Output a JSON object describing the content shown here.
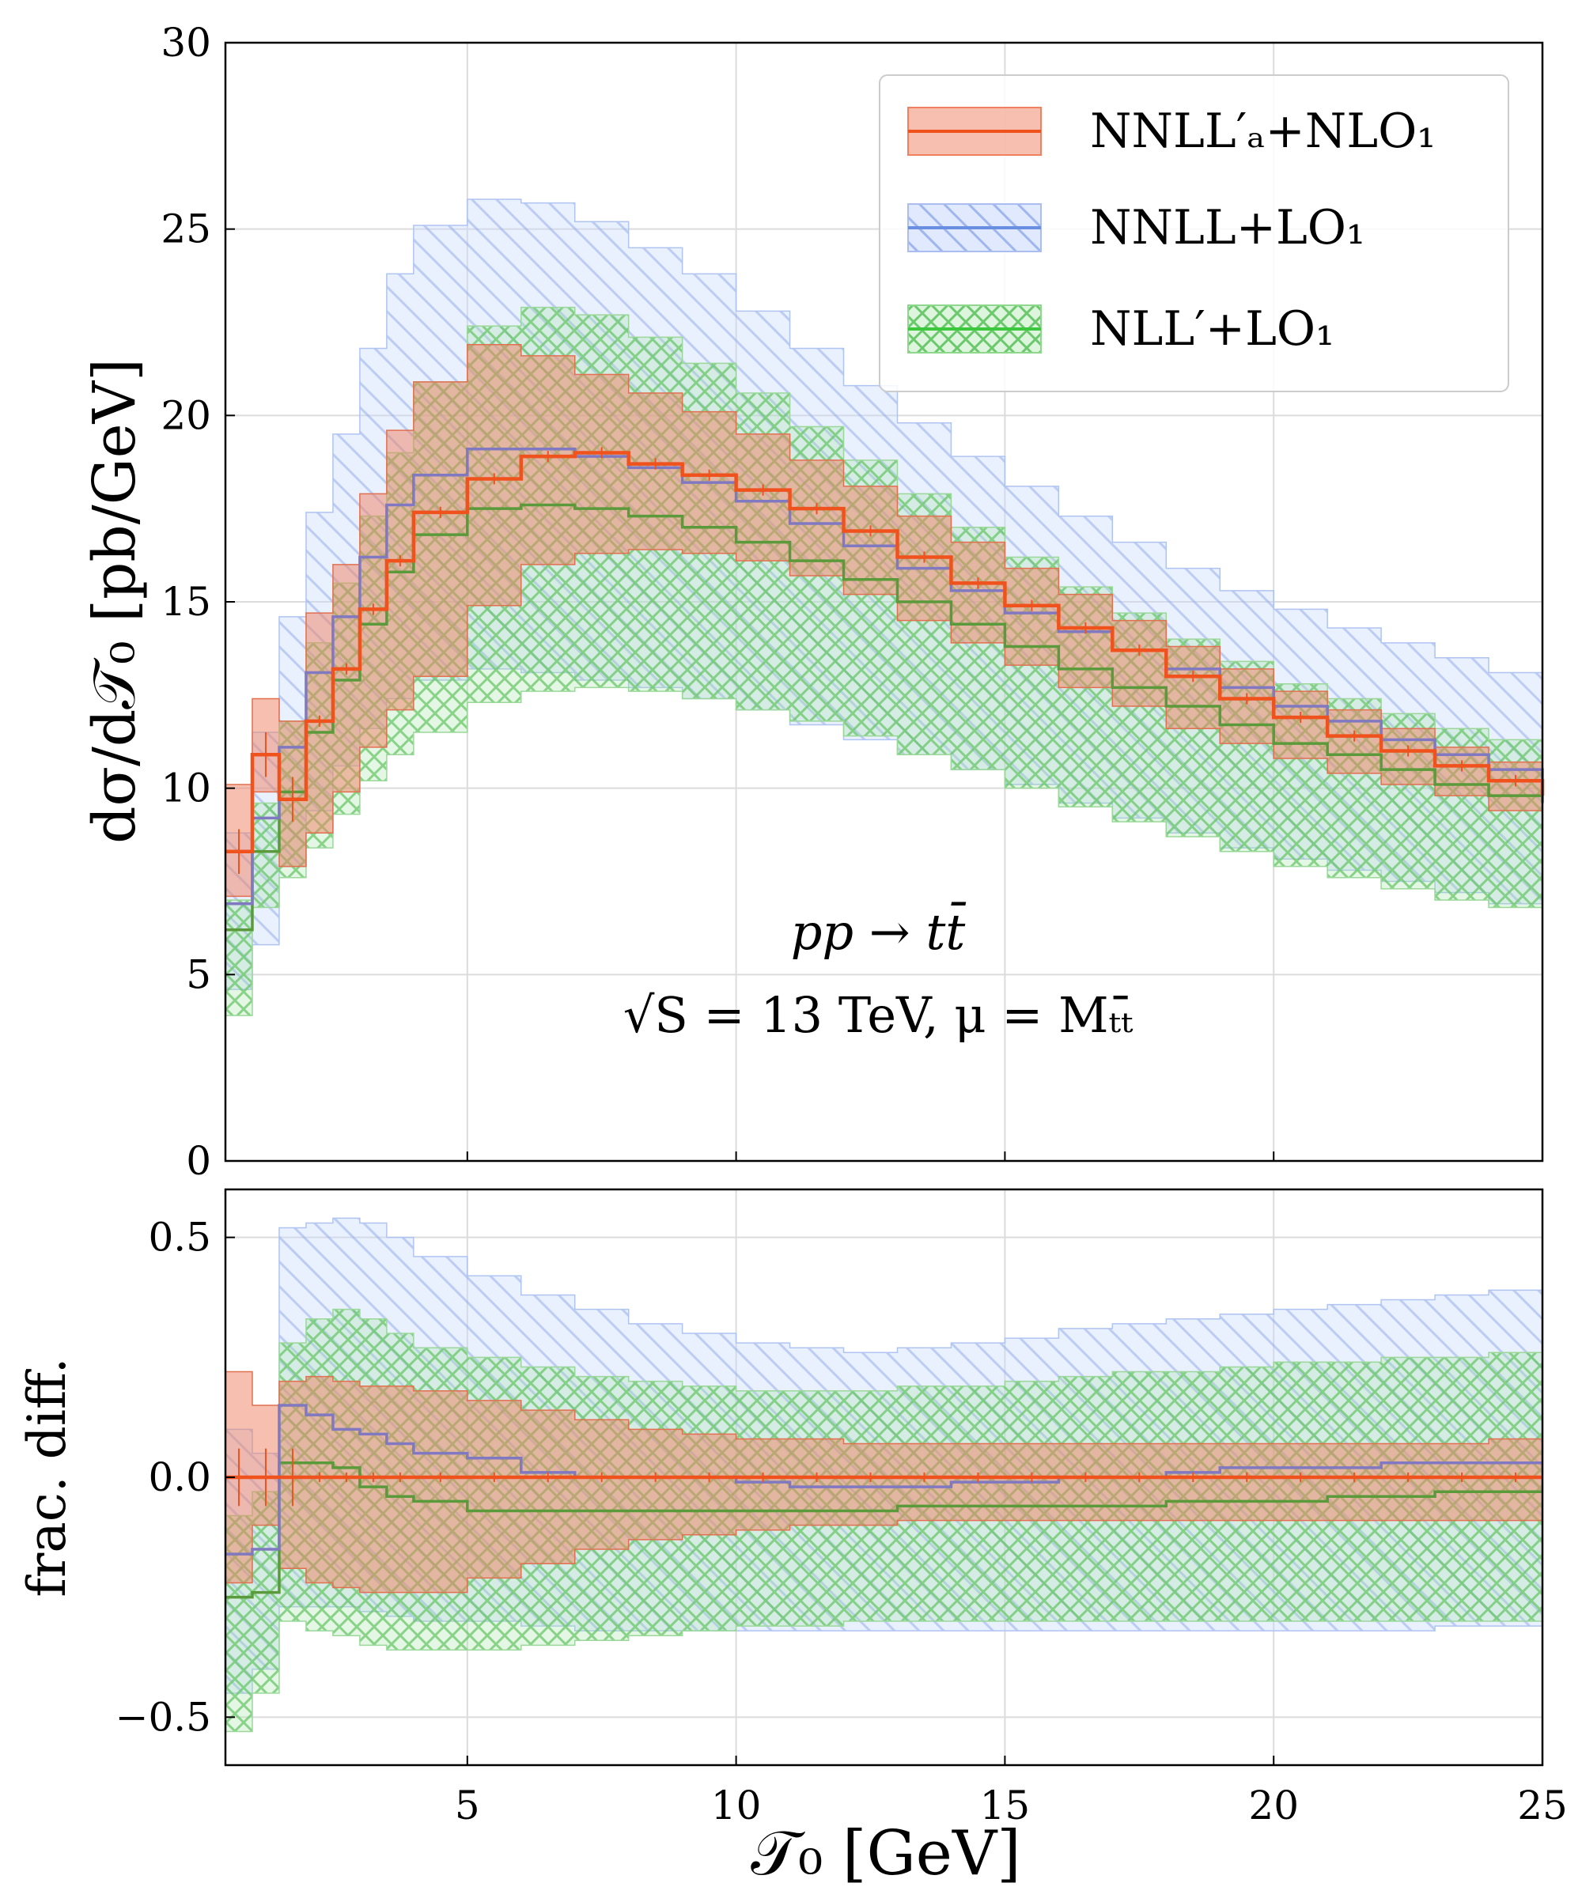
{
  "chart_data": [
    {
      "panel": "main",
      "type": "line",
      "ylabel": "dσ/d𝒯₀  [pb/GeV]",
      "ylim": [
        0,
        30
      ],
      "xlim": [
        0.5,
        25
      ],
      "yticks": [
        0,
        5,
        10,
        15,
        20,
        25,
        30
      ],
      "ytick_labels": [
        "0",
        "5",
        "10",
        "15",
        "20",
        "25",
        "30"
      ],
      "grid": true,
      "legend_position": "top-right",
      "annotation": {
        "line1": "pp → tt̄",
        "line2": "√S = 13 TeV, μ = Mₜₜ̄"
      },
      "x": [
        0.5,
        1.0,
        1.5,
        2.0,
        2.5,
        3.0,
        3.5,
        4.0,
        5.0,
        6.0,
        7.0,
        8.0,
        9.0,
        10.0,
        11.0,
        12.0,
        13.0,
        14.0,
        15.0,
        16.0,
        17.0,
        18.0,
        19.0,
        20.0,
        21.0,
        22.0,
        23.0,
        24.0,
        25.0
      ],
      "series": [
        {
          "name": "NNLL′ₐ+NLO₁",
          "color": "#f0521e",
          "band_color": "#f08060",
          "style": "solid",
          "values": [
            8.3,
            10.9,
            9.7,
            11.8,
            13.2,
            14.8,
            16.1,
            17.4,
            18.3,
            18.9,
            19.0,
            18.7,
            18.4,
            18.0,
            17.5,
            16.9,
            16.2,
            15.5,
            14.9,
            14.3,
            13.7,
            13.0,
            12.4,
            11.9,
            11.4,
            11.0,
            10.6,
            10.2,
            9.8
          ],
          "lower": [
            7.1,
            9.9,
            7.9,
            8.8,
            9.9,
            11.1,
            12.1,
            13.0,
            14.9,
            16.0,
            16.3,
            16.4,
            16.3,
            16.1,
            15.7,
            15.2,
            14.5,
            13.9,
            13.3,
            12.7,
            12.2,
            11.6,
            11.2,
            10.8,
            10.4,
            10.1,
            9.8,
            9.4,
            8.9
          ],
          "upper": [
            10.1,
            12.4,
            11.8,
            14.7,
            16.0,
            17.9,
            19.6,
            20.9,
            21.9,
            21.6,
            21.1,
            20.6,
            20.1,
            19.5,
            18.8,
            18.1,
            17.3,
            16.6,
            15.9,
            15.2,
            14.5,
            13.8,
            13.2,
            12.6,
            12.1,
            11.6,
            11.1,
            10.7,
            10.6
          ]
        },
        {
          "name": "NNLL+LO₁",
          "color": "#8078c0",
          "band_color": "#a9bdf0",
          "style": "hatched",
          "values": [
            6.9,
            9.2,
            11.1,
            13.1,
            14.6,
            16.2,
            17.6,
            18.4,
            19.1,
            19.1,
            18.9,
            18.6,
            18.2,
            17.7,
            17.1,
            16.5,
            15.9,
            15.3,
            14.7,
            14.2,
            13.7,
            13.2,
            12.7,
            12.2,
            11.8,
            11.3,
            10.9,
            10.5,
            10.2
          ],
          "lower": [
            4.6,
            5.8,
            7.9,
            9.4,
            10.6,
            11.6,
            12.4,
            12.9,
            13.2,
            13.1,
            12.9,
            12.7,
            12.4,
            12.1,
            11.7,
            11.3,
            10.9,
            10.5,
            10.1,
            9.6,
            9.2,
            8.8,
            8.4,
            8.1,
            7.8,
            7.5,
            7.2,
            6.9,
            6.8
          ],
          "upper": [
            8.8,
            11.5,
            14.6,
            17.4,
            19.5,
            21.8,
            23.8,
            25.1,
            25.8,
            25.7,
            25.2,
            24.5,
            23.8,
            22.8,
            21.8,
            20.8,
            19.8,
            18.9,
            18.1,
            17.3,
            16.6,
            15.9,
            15.3,
            14.8,
            14.3,
            13.9,
            13.5,
            13.1,
            12.3
          ]
        },
        {
          "name": "NLL′+LO₁",
          "color": "#5a9a3a",
          "band_color": "#8ed88e",
          "style": "crosshatched",
          "values": [
            6.2,
            8.3,
            9.9,
            11.5,
            12.9,
            14.4,
            15.8,
            16.8,
            17.5,
            17.6,
            17.5,
            17.3,
            17.0,
            16.6,
            16.1,
            15.6,
            15.0,
            14.4,
            13.8,
            13.2,
            12.7,
            12.2,
            11.7,
            11.2,
            10.9,
            10.5,
            10.1,
            9.8,
            9.6
          ],
          "lower": [
            3.9,
            6.8,
            7.6,
            8.4,
            9.3,
            10.2,
            10.9,
            11.5,
            12.3,
            12.6,
            12.7,
            12.6,
            12.4,
            12.1,
            11.8,
            11.4,
            10.9,
            10.5,
            10.0,
            9.5,
            9.1,
            8.7,
            8.3,
            7.9,
            7.6,
            7.3,
            7.0,
            6.8,
            6.8
          ],
          "upper": [
            7.0,
            9.6,
            11.8,
            13.9,
            15.5,
            17.3,
            19.0,
            20.9,
            22.4,
            22.9,
            22.7,
            22.1,
            21.4,
            20.6,
            19.7,
            18.8,
            17.9,
            17.0,
            16.2,
            15.4,
            14.7,
            14.0,
            13.4,
            12.8,
            12.4,
            12.0,
            11.6,
            11.3,
            10.6
          ]
        }
      ]
    },
    {
      "panel": "ratio",
      "type": "line",
      "xlabel": "𝒯₀  [GeV]",
      "ylabel": "frac. diff.",
      "ylim": [
        -0.6,
        0.6
      ],
      "xlim": [
        0.5,
        25
      ],
      "yticks": [
        -0.5,
        0.0,
        0.5
      ],
      "ytick_labels": [
        "−0.5",
        "0.0",
        "0.5"
      ],
      "xticks": [
        5,
        10,
        15,
        20,
        25
      ],
      "xtick_labels": [
        "5",
        "10",
        "15",
        "20",
        "25"
      ],
      "grid": true,
      "x": [
        0.5,
        1.0,
        1.5,
        2.0,
        2.5,
        3.0,
        3.5,
        4.0,
        5.0,
        6.0,
        7.0,
        8.0,
        9.0,
        10.0,
        11.0,
        12.0,
        13.0,
        14.0,
        15.0,
        16.0,
        17.0,
        18.0,
        19.0,
        20.0,
        21.0,
        22.0,
        23.0,
        24.0,
        25.0
      ],
      "series": [
        {
          "name": "NNLL′ₐ+NLO₁",
          "color": "#f0521e",
          "band_color": "#f08060",
          "style": "solid",
          "values": [
            0.0,
            0.0,
            0.0,
            0.0,
            0.0,
            0.0,
            0.0,
            0.0,
            0.0,
            0.0,
            0.0,
            0.0,
            0.0,
            0.0,
            0.0,
            0.0,
            0.0,
            0.0,
            0.0,
            0.0,
            0.0,
            0.0,
            0.0,
            0.0,
            0.0,
            0.0,
            0.0,
            0.0,
            0.0
          ],
          "lower": [
            -0.22,
            -0.1,
            -0.19,
            -0.22,
            -0.23,
            -0.24,
            -0.24,
            -0.24,
            -0.21,
            -0.18,
            -0.15,
            -0.13,
            -0.12,
            -0.11,
            -0.1,
            -0.1,
            -0.09,
            -0.09,
            -0.09,
            -0.09,
            -0.09,
            -0.09,
            -0.09,
            -0.09,
            -0.09,
            -0.09,
            -0.09,
            -0.09,
            -0.1
          ],
          "upper": [
            0.22,
            0.15,
            0.2,
            0.21,
            0.2,
            0.19,
            0.19,
            0.18,
            0.16,
            0.14,
            0.12,
            0.1,
            0.09,
            0.08,
            0.08,
            0.07,
            0.07,
            0.07,
            0.07,
            0.07,
            0.07,
            0.07,
            0.07,
            0.07,
            0.07,
            0.07,
            0.07,
            0.08,
            0.08
          ]
        },
        {
          "name": "NNLL+LO₁",
          "color": "#8078c0",
          "band_color": "#a9bdf0",
          "style": "hatched",
          "values": [
            -0.16,
            -0.15,
            0.15,
            0.13,
            0.1,
            0.09,
            0.07,
            0.05,
            0.04,
            0.01,
            0.0,
            0.0,
            0.0,
            -0.01,
            -0.02,
            -0.02,
            -0.02,
            -0.01,
            -0.01,
            0.0,
            0.0,
            0.01,
            0.02,
            0.02,
            0.02,
            0.03,
            0.03,
            0.03,
            0.03
          ],
          "lower": [
            -0.45,
            -0.4,
            -0.27,
            -0.27,
            -0.27,
            -0.28,
            -0.29,
            -0.3,
            -0.3,
            -0.31,
            -0.32,
            -0.32,
            -0.32,
            -0.32,
            -0.32,
            -0.32,
            -0.32,
            -0.32,
            -0.32,
            -0.32,
            -0.32,
            -0.32,
            -0.32,
            -0.32,
            -0.32,
            -0.32,
            -0.31,
            -0.31,
            -0.3
          ],
          "upper": [
            0.1,
            0.05,
            0.52,
            0.53,
            0.54,
            0.53,
            0.5,
            0.46,
            0.42,
            0.38,
            0.35,
            0.32,
            0.3,
            0.28,
            0.27,
            0.26,
            0.27,
            0.28,
            0.29,
            0.31,
            0.32,
            0.33,
            0.34,
            0.35,
            0.36,
            0.37,
            0.38,
            0.39,
            0.4
          ]
        },
        {
          "name": "NLL′+LO₁",
          "color": "#5a9a3a",
          "band_color": "#8ed88e",
          "style": "crosshatched",
          "values": [
            -0.25,
            -0.24,
            0.03,
            0.03,
            0.02,
            -0.02,
            -0.04,
            -0.05,
            -0.07,
            -0.07,
            -0.07,
            -0.07,
            -0.07,
            -0.07,
            -0.07,
            -0.07,
            -0.06,
            -0.06,
            -0.06,
            -0.06,
            -0.06,
            -0.05,
            -0.05,
            -0.05,
            -0.04,
            -0.04,
            -0.03,
            -0.03,
            -0.03
          ],
          "lower": [
            -0.53,
            -0.45,
            -0.3,
            -0.32,
            -0.33,
            -0.35,
            -0.36,
            -0.36,
            -0.36,
            -0.35,
            -0.34,
            -0.33,
            -0.32,
            -0.31,
            -0.31,
            -0.3,
            -0.3,
            -0.3,
            -0.3,
            -0.3,
            -0.3,
            -0.3,
            -0.3,
            -0.3,
            -0.3,
            -0.3,
            -0.3,
            -0.3,
            -0.3
          ],
          "upper": [
            -0.08,
            -0.03,
            0.28,
            0.33,
            0.35,
            0.33,
            0.3,
            0.27,
            0.25,
            0.23,
            0.21,
            0.2,
            0.19,
            0.18,
            0.18,
            0.18,
            0.19,
            0.19,
            0.2,
            0.21,
            0.22,
            0.22,
            0.23,
            0.24,
            0.24,
            0.25,
            0.25,
            0.26,
            0.26
          ]
        }
      ]
    }
  ]
}
